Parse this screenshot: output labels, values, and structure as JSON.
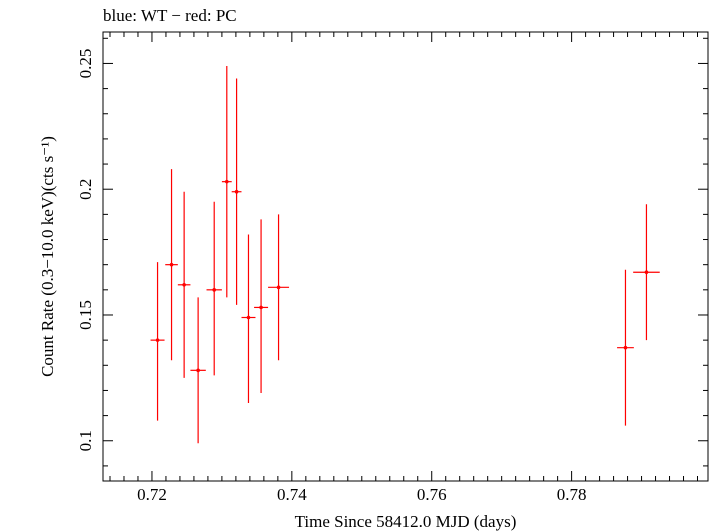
{
  "chart_data": {
    "type": "scatter",
    "title": "blue: WT − red: PC",
    "xlabel": "Time Since 58412.0 MJD (days)",
    "ylabel": "Count Rate (0.3−10.0 keV)(cts s⁻¹)",
    "xlim": [
      0.713,
      0.7995
    ],
    "ylim": [
      0.084,
      0.2625
    ],
    "xticks": [
      0.72,
      0.74,
      0.76,
      0.78
    ],
    "xtick_labels": [
      "0.72",
      "0.74",
      "0.76",
      "0.78"
    ],
    "yticks": [
      0.1,
      0.15,
      0.2,
      0.25
    ],
    "ytick_labels": [
      "0.1",
      "0.15",
      "0.2",
      "0.25"
    ],
    "grid": false,
    "series": [
      {
        "color": "#ff0000",
        "points": [
          {
            "x": 0.7208,
            "xerr": 0.001,
            "y": 0.14,
            "ylo": 0.108,
            "yhi": 0.171
          },
          {
            "x": 0.7228,
            "xerr": 0.0009,
            "y": 0.17,
            "ylo": 0.132,
            "yhi": 0.208
          },
          {
            "x": 0.7246,
            "xerr": 0.0009,
            "y": 0.162,
            "ylo": 0.125,
            "yhi": 0.199
          },
          {
            "x": 0.7266,
            "xerr": 0.0011,
            "y": 0.128,
            "ylo": 0.099,
            "yhi": 0.157
          },
          {
            "x": 0.7289,
            "xerr": 0.0011,
            "y": 0.16,
            "ylo": 0.126,
            "yhi": 0.195
          },
          {
            "x": 0.7307,
            "xerr": 0.0007,
            "y": 0.203,
            "ylo": 0.157,
            "yhi": 0.249
          },
          {
            "x": 0.7321,
            "xerr": 0.0007,
            "y": 0.199,
            "ylo": 0.154,
            "yhi": 0.244
          },
          {
            "x": 0.7338,
            "xerr": 0.001,
            "y": 0.149,
            "ylo": 0.115,
            "yhi": 0.182
          },
          {
            "x": 0.7356,
            "xerr": 0.001,
            "y": 0.153,
            "ylo": 0.119,
            "yhi": 0.188
          },
          {
            "x": 0.7381,
            "xerr": 0.0015,
            "y": 0.161,
            "ylo": 0.132,
            "yhi": 0.19
          },
          {
            "x": 0.7877,
            "xerr": 0.0012,
            "y": 0.137,
            "ylo": 0.106,
            "yhi": 0.168
          },
          {
            "x": 0.7907,
            "xerr": 0.0019,
            "y": 0.167,
            "ylo": 0.14,
            "yhi": 0.194
          }
        ]
      }
    ]
  }
}
